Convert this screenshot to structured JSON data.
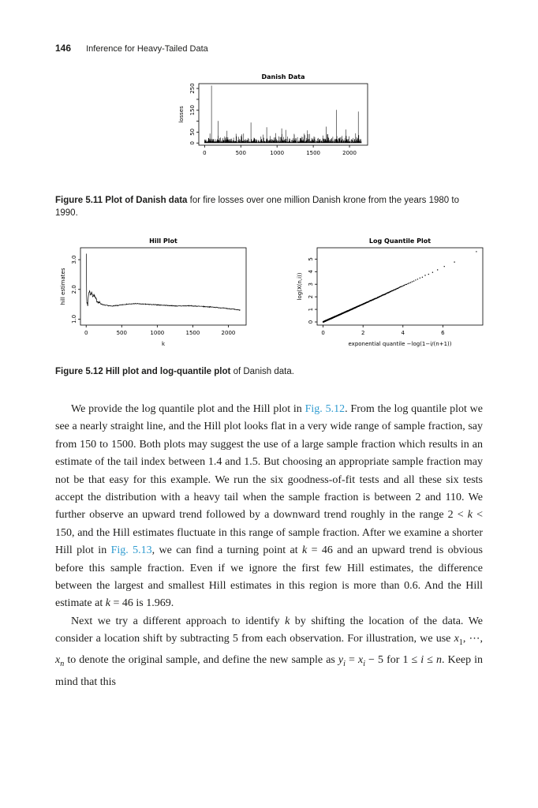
{
  "page": {
    "number": "146",
    "running_head": "Inference for Heavy-Tailed Data"
  },
  "colors": {
    "link": "#2f9bd0",
    "text": "#1d1d1b"
  },
  "figures": {
    "fig511": {
      "label": "Figure 5.11",
      "bold": "Plot of Danish data",
      "rest": "for fire losses over one million Danish krone from the years 1980 to 1990."
    },
    "fig512": {
      "label": "Figure 5.12",
      "bold": "Hill plot and log-quantile plot",
      "rest": "of Danish data."
    }
  },
  "chart_data": [
    {
      "id": "danish",
      "type": "line",
      "title": "Danish Data",
      "ylabel": "losses",
      "xlabel": "",
      "n_points": 2167,
      "xlim": [
        -80,
        2250
      ],
      "ylim": [
        -10,
        272
      ],
      "xtick_vals": [
        0,
        500,
        1000,
        1500,
        2000
      ],
      "xtick_labels": [
        "0",
        "500",
        "1000",
        "1500",
        "2000"
      ],
      "ytick_vals": [
        0,
        50,
        100,
        150,
        200,
        250
      ],
      "ytick_labels": [
        "0",
        "50",
        "",
        "150",
        "",
        "250"
      ],
      "base_scale": 8,
      "cap": 100,
      "spike_prob": 0.02,
      "major_spikes": [
        [
          95,
          263
        ],
        [
          188,
          101
        ],
        [
          310,
          56
        ],
        [
          640,
          94
        ],
        [
          857,
          72
        ],
        [
          1120,
          60
        ],
        [
          1420,
          58
        ],
        [
          1680,
          75
        ],
        [
          1822,
          152
        ],
        [
          1950,
          62
        ],
        [
          2122,
          144
        ]
      ],
      "seed": 42
    },
    {
      "id": "hill",
      "type": "line",
      "title": "Hill Plot",
      "ylabel": "hill estimates",
      "xlabel": "k",
      "n_points": 2167,
      "xlim": [
        -80,
        2250
      ],
      "ylim": [
        0.8,
        3.4
      ],
      "xtick_vals": [
        0,
        500,
        1000,
        1500,
        2000
      ],
      "xtick_labels": [
        "0",
        "500",
        "1000",
        "1500",
        "2000"
      ],
      "ytick_vals": [
        1,
        2,
        3
      ],
      "ytick_labels": [
        "1.0",
        "2.0",
        "3.0"
      ],
      "curve": [
        [
          2,
          3.25
        ],
        [
          4,
          2.2
        ],
        [
          8,
          1.45
        ],
        [
          14,
          1.55
        ],
        [
          22,
          1.45
        ],
        [
          30,
          1.75
        ],
        [
          40,
          1.9
        ],
        [
          46,
          1.97
        ],
        [
          60,
          1.82
        ],
        [
          75,
          1.9
        ],
        [
          90,
          1.78
        ],
        [
          110,
          1.82
        ],
        [
          130,
          1.7
        ],
        [
          150,
          1.62
        ],
        [
          200,
          1.52
        ],
        [
          260,
          1.47
        ],
        [
          350,
          1.44
        ],
        [
          450,
          1.46
        ],
        [
          550,
          1.5
        ],
        [
          700,
          1.52
        ],
        [
          850,
          1.5
        ],
        [
          1000,
          1.48
        ],
        [
          1150,
          1.46
        ],
        [
          1300,
          1.44
        ],
        [
          1450,
          1.45
        ],
        [
          1600,
          1.43
        ],
        [
          1750,
          1.41
        ],
        [
          1900,
          1.38
        ],
        [
          2050,
          1.34
        ],
        [
          2167,
          1.3
        ]
      ],
      "seed": 7
    },
    {
      "id": "logq",
      "type": "scatter",
      "title": "Log Quantile Plot",
      "ylabel": "log(X(n,i))",
      "xlabel": "exponential quantile −log(1−i/(n+1))",
      "n_points": 2167,
      "xlim": [
        -0.3,
        8.0
      ],
      "ylim": [
        -0.25,
        5.9
      ],
      "xtick_vals": [
        0,
        2,
        4,
        6
      ],
      "xtick_labels": [
        "0",
        "2",
        "4",
        "6"
      ],
      "ytick_vals": [
        0,
        1,
        2,
        3,
        4,
        5
      ],
      "ytick_labels": [
        "0",
        "1",
        "2",
        "3",
        "4",
        "5"
      ],
      "slope": 0.7,
      "curve_coef": 0.004,
      "seed": 11
    }
  ],
  "body": {
    "paragraphs": [
      {
        "runs": [
          {
            "t": "We provide the log quantile plot and the Hill plot in "
          },
          {
            "t": "Fig. 5.12",
            "s": "link"
          },
          {
            "t": ". From the log quantile plot we see a nearly straight line, and the Hill plot looks flat in a very wide range of sample fraction, say from 150 to 1500. Both plots may suggest the use of a large sample fraction which results in an estimate of the tail index between 1.4 and 1.5. But choosing an appropriate sample fraction may not be that easy for this example. We run the six goodness-of-fit tests and all these six tests accept the distribution with a heavy tail when the sample fraction is between 2 and 110. We further observe an upward trend followed by a downward trend roughly in the range 2 < "
          },
          {
            "t": "k",
            "s": "i"
          },
          {
            "t": " < 150, and the Hill estimates fluctuate in this range of sample fraction. After we examine a shorter Hill plot in "
          },
          {
            "t": "Fig. 5.13",
            "s": "link"
          },
          {
            "t": ", we can find a turning point at "
          },
          {
            "t": "k",
            "s": "i"
          },
          {
            "t": " = 46 and an upward trend is obvious before this sample fraction. Even if we ignore the first few Hill estimates, the difference between the largest and smallest Hill estimates in this region is more than 0.6. And the Hill estimate at "
          },
          {
            "t": "k",
            "s": "i"
          },
          {
            "t": " = 46 is 1.969."
          }
        ]
      },
      {
        "runs": [
          {
            "t": "Next we try a different approach to identify "
          },
          {
            "t": "k",
            "s": "i"
          },
          {
            "t": " by shifting the location of the data. We consider a location shift by subtracting 5 from each observation. For illustration, we use "
          },
          {
            "t": "x",
            "s": "i"
          },
          {
            "t": "1",
            "s": "sub"
          },
          {
            "t": ", ⋯, "
          },
          {
            "t": "x",
            "s": "i"
          },
          {
            "t": "n",
            "s": "isub"
          },
          {
            "t": " to denote the original sample, and define the new sample as "
          },
          {
            "t": "y",
            "s": "i"
          },
          {
            "t": "i",
            "s": "isub"
          },
          {
            "t": " = "
          },
          {
            "t": "x",
            "s": "i"
          },
          {
            "t": "i",
            "s": "isub"
          },
          {
            "t": " − 5 for 1 ≤ "
          },
          {
            "t": "i",
            "s": "i"
          },
          {
            "t": " ≤ "
          },
          {
            "t": "n",
            "s": "i"
          },
          {
            "t": ". Keep in mind that this"
          }
        ]
      }
    ]
  }
}
